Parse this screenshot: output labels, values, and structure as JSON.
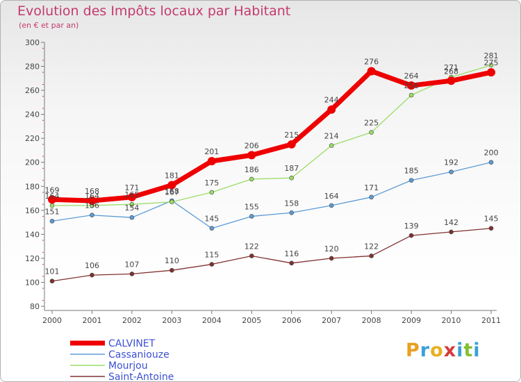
{
  "title": "Evolution des Impôts locaux par Habitant",
  "subtitle": "(en € et par an)",
  "logo_letters": [
    {
      "ch": "P",
      "color": "#e8a020"
    },
    {
      "ch": "r",
      "color": "#3aa0d8"
    },
    {
      "ch": "o",
      "color": "#e8b020"
    },
    {
      "ch": "x",
      "color": "#d83a3a"
    },
    {
      "ch": "i",
      "color": "#3aa0d8"
    },
    {
      "ch": "t",
      "color": "#80c030"
    },
    {
      "ch": "i",
      "color": "#3aa0d8"
    }
  ],
  "chart_data": {
    "type": "line",
    "title": "Evolution des Impôts locaux par Habitant",
    "subtitle": "(en € et par an)",
    "xlabel": "",
    "ylabel": "",
    "ylim": [
      80,
      300
    ],
    "yticks": [
      80,
      100,
      120,
      140,
      160,
      180,
      200,
      220,
      240,
      260,
      280,
      300
    ],
    "categories": [
      "2000",
      "2001",
      "2002",
      "2003",
      "2004",
      "2005",
      "2006",
      "2007",
      "2008",
      "2009",
      "2010",
      "2011"
    ],
    "series": [
      {
        "name": "CALVINET",
        "color": "#ee0000",
        "thick": true,
        "values": [
          169,
          168,
          171,
          181,
          201,
          206,
          215,
          244,
          276,
          264,
          268,
          275
        ],
        "labels": [
          "169",
          "168",
          "171",
          "181",
          "201",
          "206",
          "215",
          "244",
          "276",
          "264",
          "268",
          "275"
        ]
      },
      {
        "name": "Cassaniouze",
        "color": "#5b9bd5",
        "thick": false,
        "values": [
          151,
          156,
          154,
          168,
          145,
          155,
          158,
          164,
          171,
          185,
          192,
          200
        ],
        "labels": [
          "151",
          "156",
          "154",
          "168",
          "145",
          "155",
          "158",
          "164",
          "171",
          "185",
          "192",
          "200"
        ]
      },
      {
        "name": "Mourjou",
        "color": "#99dd66",
        "thick": false,
        "values": [
          164,
          164,
          165,
          167,
          175,
          186,
          187,
          214,
          225,
          256,
          271,
          281
        ],
        "labels": [
          "164",
          "164",
          "165",
          "167",
          "175",
          "186",
          "187",
          "214",
          "225",
          "256",
          "271",
          "281"
        ]
      },
      {
        "name": "Saint-Antoine",
        "color": "#803030",
        "thick": false,
        "values": [
          101,
          106,
          107,
          110,
          115,
          122,
          116,
          120,
          122,
          139,
          142,
          145
        ],
        "labels": [
          "101",
          "106",
          "107",
          "110",
          "115",
          "122",
          "116",
          "120",
          "122",
          "139",
          "142",
          "145"
        ]
      }
    ],
    "legend_position": "bottom-left",
    "grid": false
  }
}
